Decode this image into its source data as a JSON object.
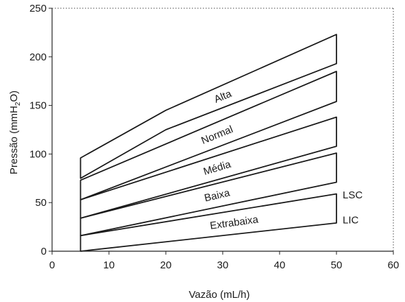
{
  "chart_data": {
    "type": "area",
    "title": "",
    "xlabel": "Vazão (mL/h)",
    "ylabel_parts": {
      "before": "Pressão (mmH",
      "sub": "2",
      "after": "O)"
    },
    "xlim": [
      0,
      60
    ],
    "ylim": [
      0,
      250
    ],
    "x_ticks": [
      0,
      10,
      20,
      30,
      40,
      50,
      60
    ],
    "y_ticks": [
      0,
      50,
      100,
      150,
      200,
      250
    ],
    "grid": false,
    "x_range": [
      5,
      50
    ],
    "bands": [
      {
        "name": "Extrabaixa",
        "lower": [
          [
            5,
            0
          ],
          [
            50,
            29
          ]
        ],
        "upper": [
          [
            5,
            16
          ],
          [
            50,
            59
          ]
        ]
      },
      {
        "name": "Baixa",
        "lower": [
          [
            5,
            16
          ],
          [
            50,
            71
          ]
        ],
        "upper": [
          [
            5,
            34
          ],
          [
            50,
            101
          ]
        ]
      },
      {
        "name": "Média",
        "lower": [
          [
            5,
            34
          ],
          [
            50,
            108
          ]
        ],
        "upper": [
          [
            5,
            53
          ],
          [
            50,
            138
          ]
        ]
      },
      {
        "name": "Normal",
        "lower": [
          [
            5,
            53
          ],
          [
            50,
            154
          ]
        ],
        "upper": [
          [
            5,
            73
          ],
          [
            50,
            185
          ]
        ]
      },
      {
        "name": "Alta",
        "lower": [
          [
            5,
            75
          ],
          [
            20,
            125
          ],
          [
            50,
            193
          ]
        ],
        "upper": [
          [
            5,
            96
          ],
          [
            20,
            145
          ],
          [
            50,
            223
          ]
        ]
      }
    ],
    "end_labels": [
      {
        "text": "LSC",
        "x": 50,
        "y": 58
      },
      {
        "text": "LIC",
        "x": 50,
        "y": 32
      }
    ]
  }
}
